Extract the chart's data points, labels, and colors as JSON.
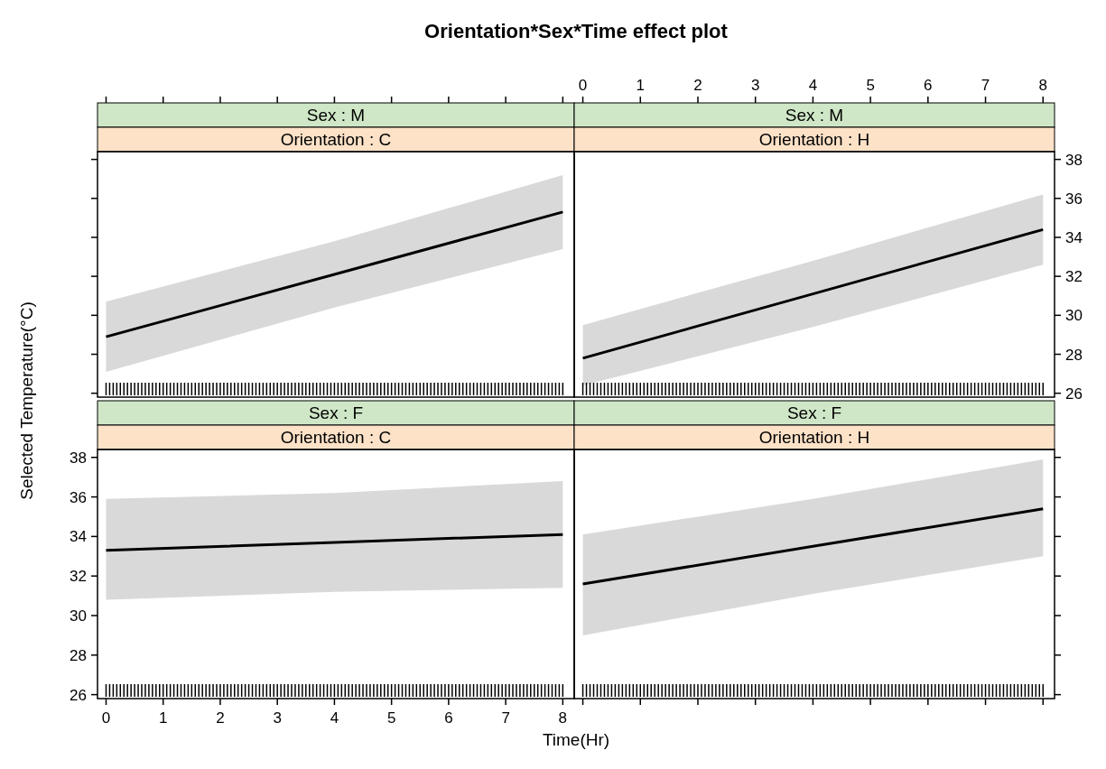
{
  "chart_data": [
    {
      "type": "line",
      "title": "Sex : M",
      "subtitle": "Orientation : C",
      "annotations": [
        "Orientation*Sex*Time effect plot"
      ],
      "x": [
        0,
        4,
        8
      ],
      "xlim": [
        -0.15,
        8.2
      ],
      "xticks": [
        0,
        1,
        2,
        3,
        4,
        5,
        6,
        7,
        8
      ],
      "ylim": [
        25.8,
        38.4
      ],
      "yticks": [
        26,
        28,
        30,
        32,
        34,
        36,
        38
      ],
      "tick_labels": false,
      "grid": false,
      "series": [
        {
          "color": "#000000",
          "values": [
            28.9,
            32.1,
            35.3
          ],
          "lower": [
            27.1,
            30.4,
            33.4
          ],
          "upper": [
            30.7,
            33.8,
            37.2
          ]
        }
      ]
    },
    {
      "type": "line",
      "title": "Sex : M",
      "subtitle": "Orientation : H",
      "x": [
        0,
        4,
        8
      ],
      "xlim": [
        -0.15,
        8.2
      ],
      "xticks": [
        0,
        1,
        2,
        3,
        4,
        5,
        6,
        7,
        8
      ],
      "ylim": [
        25.8,
        38.4
      ],
      "yticks": [
        26,
        28,
        30,
        32,
        34,
        36,
        38
      ],
      "grid": false,
      "series": [
        {
          "color": "#000000",
          "values": [
            27.8,
            31.1,
            34.4
          ],
          "lower": [
            26.4,
            29.4,
            32.6
          ],
          "upper": [
            29.5,
            32.8,
            36.2
          ]
        }
      ]
    },
    {
      "type": "line",
      "title": "Sex : F",
      "subtitle": "Orientation : C",
      "xlabel": "Time(Hr)",
      "ylabel": "Selected Temperature(°C)",
      "x": [
        0,
        4,
        8
      ],
      "xlim": [
        -0.15,
        8.2
      ],
      "xticks": [
        0,
        1,
        2,
        3,
        4,
        5,
        6,
        7,
        8
      ],
      "ylim": [
        25.8,
        38.4
      ],
      "yticks": [
        26,
        28,
        30,
        32,
        34,
        36,
        38
      ],
      "grid": false,
      "series": [
        {
          "color": "#000000",
          "values": [
            33.3,
            33.7,
            34.1
          ],
          "lower": [
            30.8,
            31.2,
            31.4
          ],
          "upper": [
            35.9,
            36.2,
            36.8
          ]
        }
      ]
    },
    {
      "type": "line",
      "title": "Sex : F",
      "subtitle": "Orientation : H",
      "x": [
        0,
        4,
        8
      ],
      "xlim": [
        -0.15,
        8.2
      ],
      "xticks": [
        0,
        1,
        2,
        3,
        4,
        5,
        6,
        7,
        8
      ],
      "ylim": [
        25.8,
        38.4
      ],
      "yticks": [
        26,
        28,
        30,
        32,
        34,
        36,
        38
      ],
      "tick_labels": false,
      "grid": false,
      "series": [
        {
          "color": "#000000",
          "values": [
            31.6,
            33.5,
            35.4
          ],
          "lower": [
            29.0,
            31.1,
            33.0
          ],
          "upper": [
            34.1,
            35.9,
            37.9
          ]
        }
      ]
    }
  ]
}
